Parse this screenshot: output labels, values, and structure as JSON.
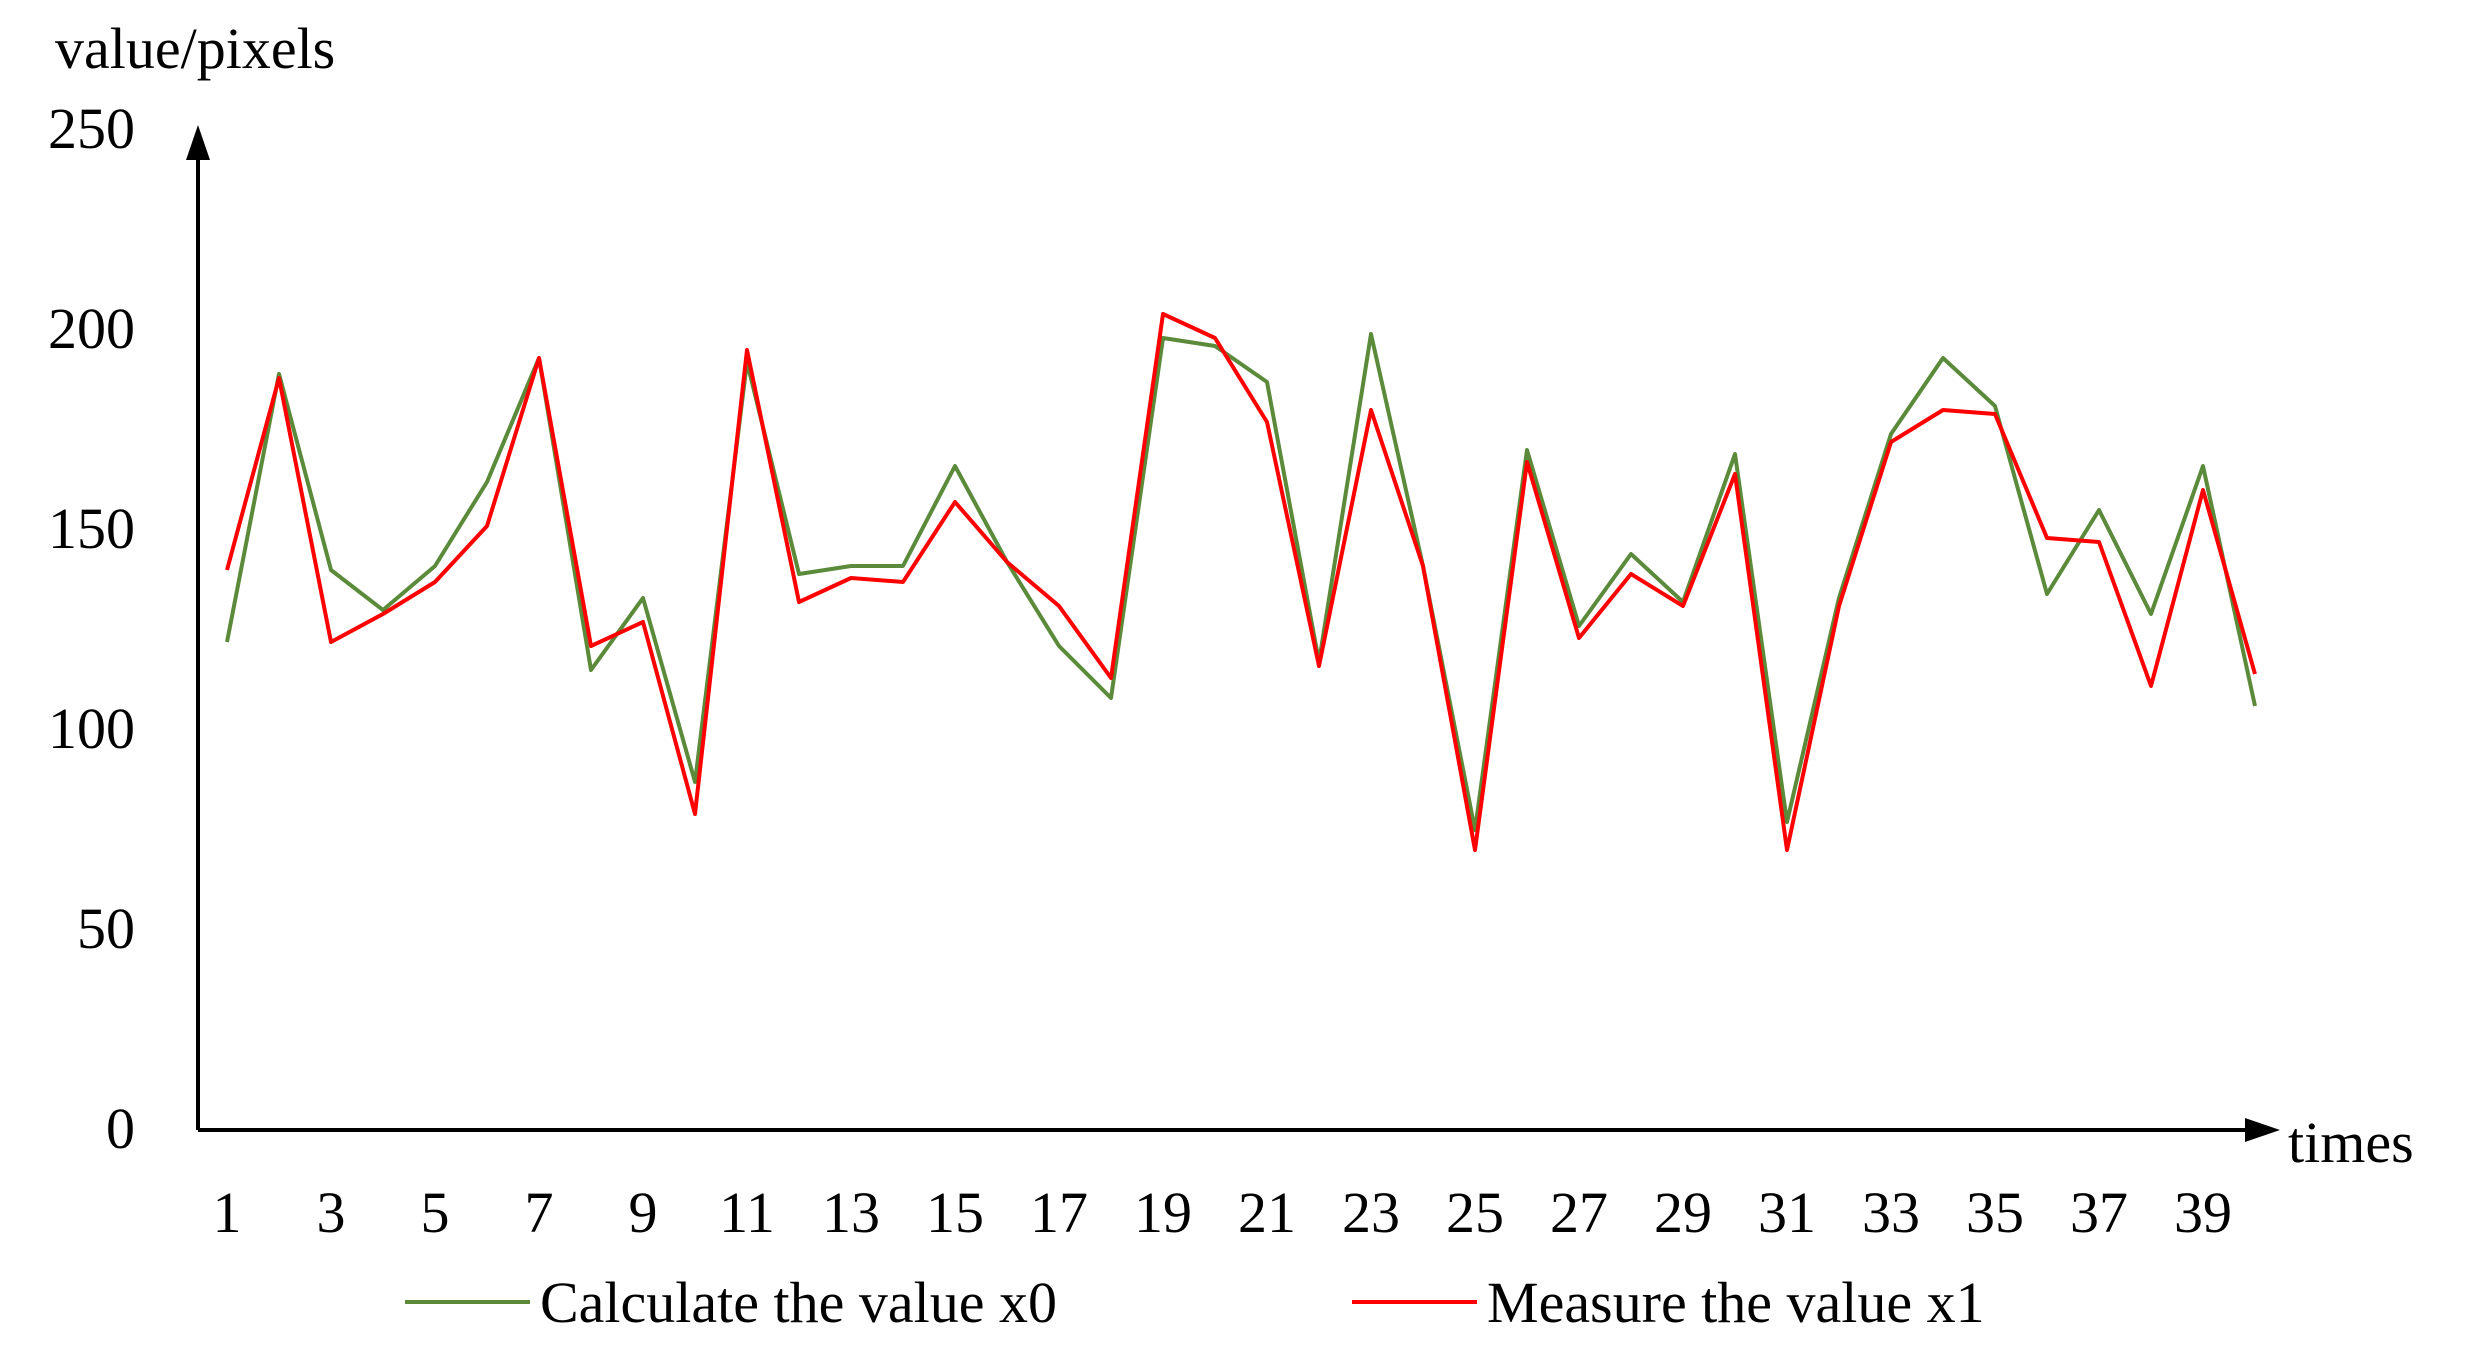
{
  "chart_data": {
    "type": "line",
    "ylabel": "value/pixels",
    "xlabel": "times",
    "ylim": [
      0,
      250
    ],
    "yticks": [
      0,
      50,
      100,
      150,
      200,
      250
    ],
    "xticks": [
      1,
      3,
      5,
      7,
      9,
      11,
      13,
      15,
      17,
      19,
      21,
      23,
      25,
      27,
      29,
      31,
      33,
      35,
      37,
      39
    ],
    "x": [
      1,
      2,
      3,
      4,
      5,
      6,
      7,
      8,
      9,
      10,
      11,
      12,
      13,
      14,
      15,
      16,
      17,
      18,
      19,
      20,
      21,
      22,
      23,
      24,
      25,
      26,
      27,
      28,
      29,
      30,
      31,
      32,
      33,
      34,
      35,
      36,
      37,
      38,
      39,
      40
    ],
    "grid": false,
    "legend_position": "bottom",
    "series": [
      {
        "name": "Calculate the value x0",
        "color": "#5a8a3a",
        "values": [
          122,
          189,
          140,
          130,
          141,
          162,
          193,
          115,
          133,
          87,
          192,
          139,
          141,
          141,
          166,
          142,
          121,
          108,
          198,
          196,
          187,
          117,
          199,
          141,
          75,
          170,
          126,
          144,
          132,
          169,
          77,
          133,
          174,
          193,
          181,
          134,
          155,
          129,
          166,
          106
        ]
      },
      {
        "name": "Measure the value x1",
        "color": "#ff0000",
        "values": [
          140,
          188,
          122,
          129,
          137,
          151,
          193,
          121,
          127,
          79,
          195,
          132,
          138,
          137,
          157,
          142,
          131,
          113,
          204,
          198,
          177,
          116,
          180,
          141,
          70,
          167,
          123,
          139,
          131,
          164,
          70,
          131,
          172,
          180,
          179,
          148,
          147,
          111,
          160,
          114
        ]
      }
    ]
  }
}
